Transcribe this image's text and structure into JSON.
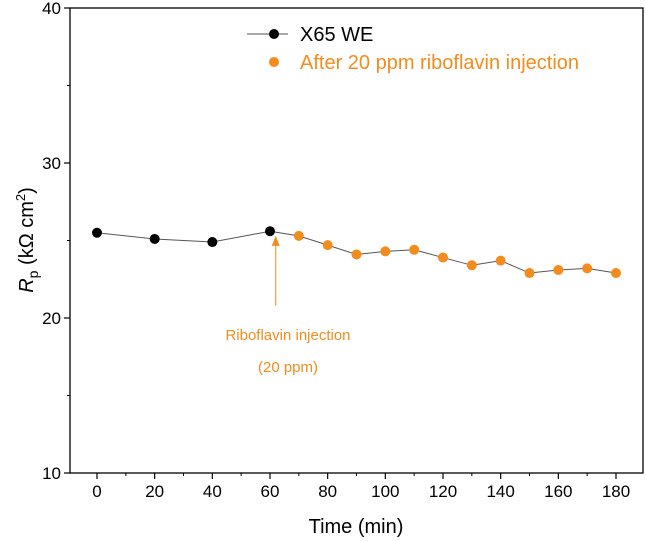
{
  "chart_data": {
    "type": "scatter",
    "xlabel": "Time (min)",
    "ylabel_main": "R",
    "ylabel_sub": "p",
    "ylabel_unit_open": " (kΩ cm",
    "ylabel_unit_sup": "2",
    "ylabel_unit_close": ")",
    "xlim": [
      -10,
      185
    ],
    "ylim": [
      10,
      40
    ],
    "xticks": [
      0,
      20,
      40,
      60,
      80,
      100,
      120,
      140,
      160,
      180
    ],
    "yticks": [
      10,
      20,
      30,
      40
    ],
    "xtick_labels": [
      "0",
      "20",
      "40",
      "60",
      "80",
      "100",
      "120",
      "140",
      "160",
      "180"
    ],
    "ytick_labels": [
      "10",
      "20",
      "30",
      "40"
    ],
    "series": [
      {
        "name": "X65 WE",
        "color": "#000000",
        "line_color": "#555555",
        "x": [
          0,
          20,
          40,
          60
        ],
        "y": [
          25.5,
          25.1,
          24.9,
          25.6
        ]
      },
      {
        "name": "After 20 ppm riboflavin injection",
        "color": "#f28c1e",
        "x": [
          70,
          80,
          90,
          100,
          110,
          120,
          130,
          140,
          150,
          160,
          170,
          180
        ],
        "y": [
          25.3,
          24.7,
          24.1,
          24.3,
          24.4,
          23.9,
          23.4,
          23.7,
          22.9,
          23.1,
          23.2,
          22.9
        ]
      }
    ],
    "annotation": {
      "line1": "Riboflavin injection",
      "line2": "(20 ppm)",
      "color": "#f28c1e",
      "x": 62,
      "y_from": 20.8,
      "y_to": 25.3
    }
  }
}
